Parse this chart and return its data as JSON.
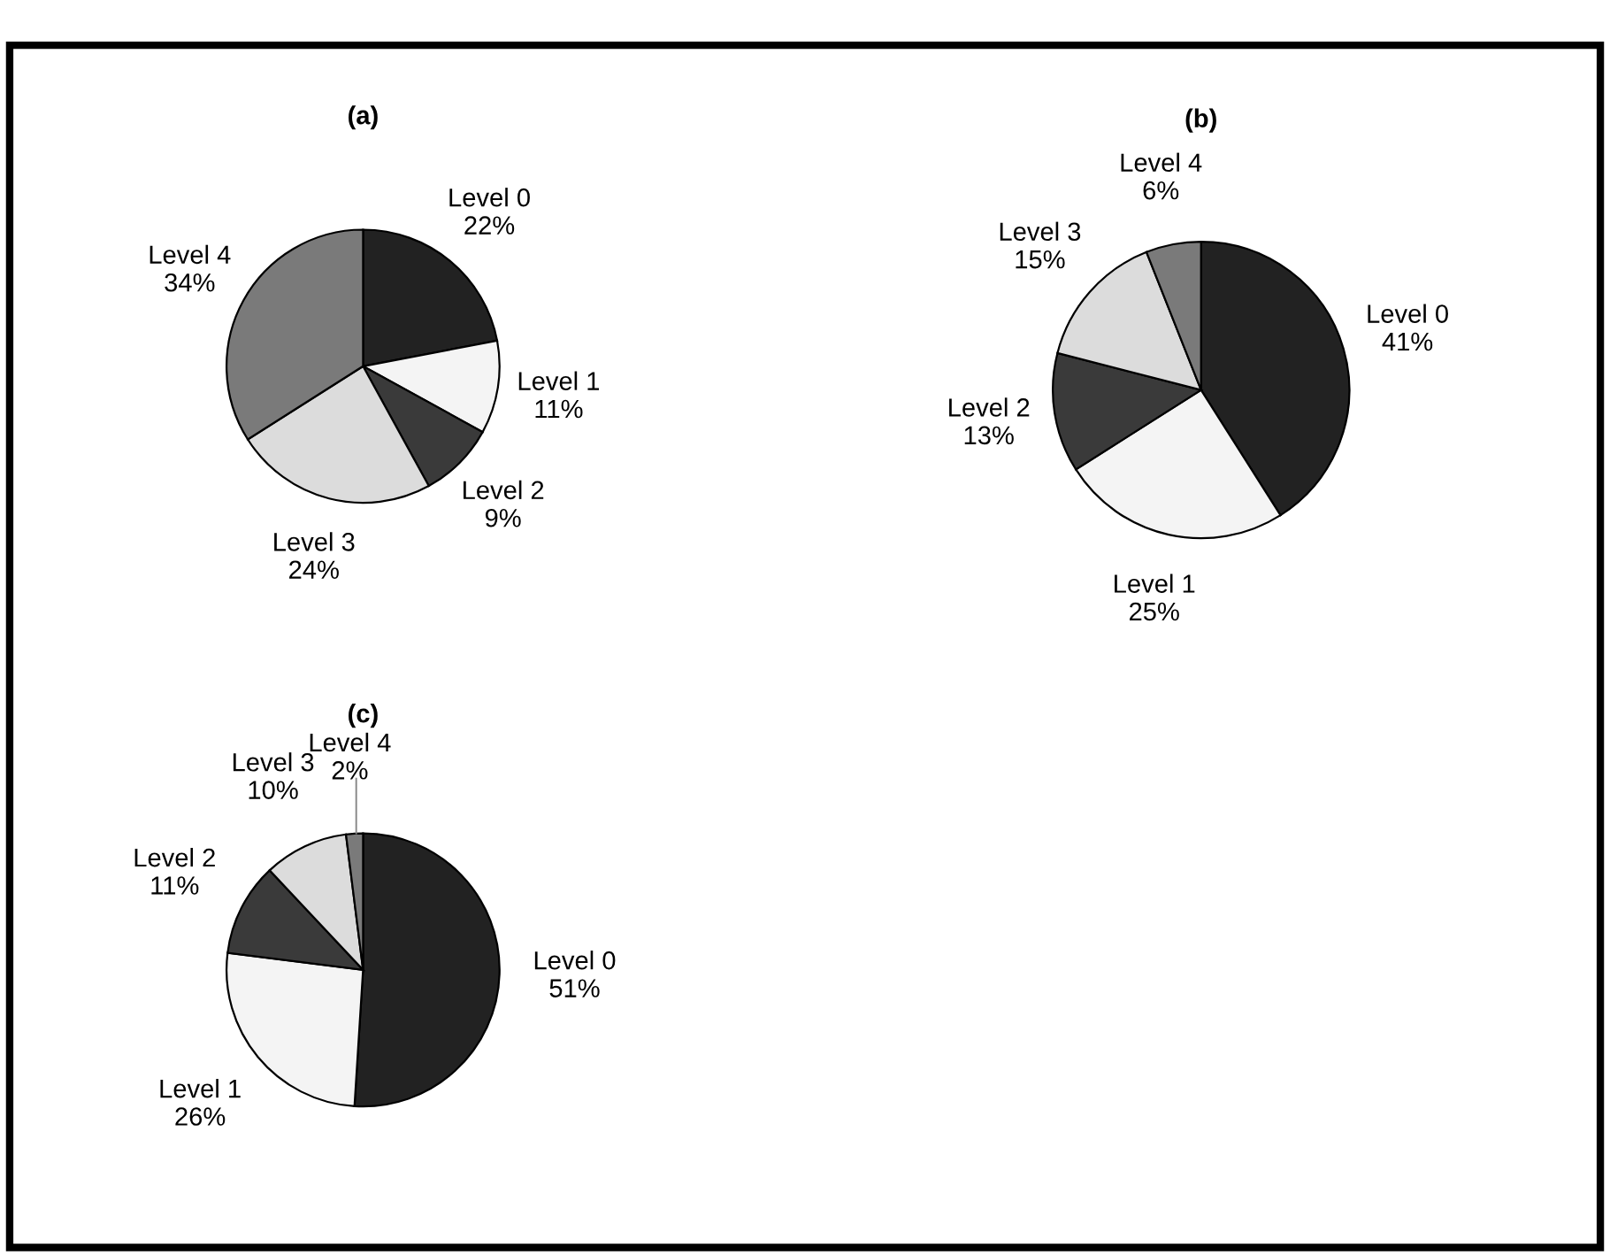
{
  "chart_data": [
    {
      "type": "pie",
      "title": "(a)",
      "categories": [
        "Level 0",
        "Level 1",
        "Level 2",
        "Level 3",
        "Level 4"
      ],
      "values": [
        22,
        11,
        9,
        24,
        34
      ],
      "value_labels": [
        "22%",
        "11%",
        "9%",
        "24%",
        "34%"
      ],
      "colors": [
        "#222222",
        "#f4f4f4",
        "#3a3a3a",
        "#dcdcdc",
        "#7a7a7a"
      ]
    },
    {
      "type": "pie",
      "title": "(b)",
      "categories": [
        "Level 0",
        "Level 1",
        "Level 2",
        "Level 3",
        "Level 4"
      ],
      "values": [
        41,
        25,
        13,
        15,
        6
      ],
      "value_labels": [
        "41%",
        "25%",
        "13%",
        "15%",
        "6%"
      ],
      "colors": [
        "#222222",
        "#f4f4f4",
        "#3a3a3a",
        "#dcdcdc",
        "#7a7a7a"
      ]
    },
    {
      "type": "pie",
      "title": "(c)",
      "categories": [
        "Level 0",
        "Level 1",
        "Level 2",
        "Level 3",
        "Level 4"
      ],
      "values": [
        51,
        26,
        11,
        10,
        2
      ],
      "value_labels": [
        "51%",
        "26%",
        "11%",
        "10%",
        "2%"
      ],
      "colors": [
        "#222222",
        "#f4f4f4",
        "#3a3a3a",
        "#dcdcdc",
        "#7a7a7a"
      ]
    }
  ]
}
